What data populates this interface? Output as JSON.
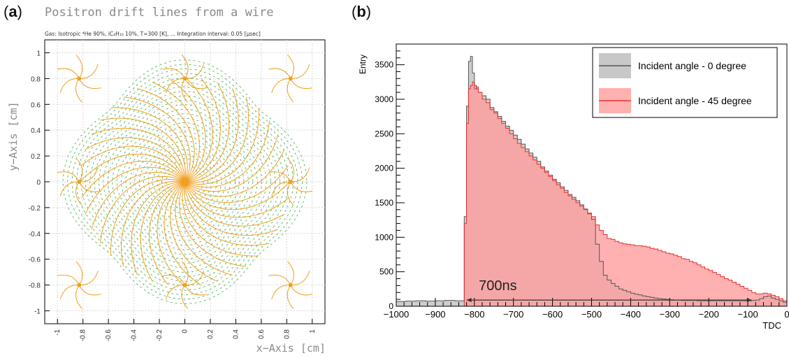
{
  "panels": {
    "a": {
      "label_open": "(",
      "label_letter": "a",
      "label_close": ")"
    },
    "b": {
      "label_open": "(",
      "label_letter": "b",
      "label_close": ")"
    }
  },
  "chart_data": [
    {
      "type": "scatter",
      "title": "Positron drift lines from a wire",
      "subtitle": "Gas: Isotropic ⁴He 90%, iC₄H₁₀ 10%, T=300 [K], ... Integration interval: 0.05 [μsec]",
      "xlabel": "x−Axis [cm]",
      "ylabel": "y−Axis [cm]",
      "xlim": [
        -1.1,
        1.1
      ],
      "ylim": [
        -1.1,
        1.1
      ],
      "x_ticks": [
        -1,
        -0.8,
        -0.6,
        -0.4,
        -0.2,
        0,
        0.2,
        0.4,
        0.6,
        0.8,
        1
      ],
      "y_ticks": [
        -1,
        -0.8,
        -0.6,
        -0.4,
        -0.2,
        0,
        0.2,
        0.4,
        0.6,
        0.8,
        1
      ],
      "grid": true,
      "wires": [
        {
          "x": 0,
          "y": 0
        },
        {
          "x": -0.83,
          "y": 0.8
        },
        {
          "x": 0,
          "y": 0.8
        },
        {
          "x": 0.83,
          "y": 0.8
        },
        {
          "x": -0.83,
          "y": 0
        },
        {
          "x": 0.83,
          "y": 0
        },
        {
          "x": -0.83,
          "y": -0.8
        },
        {
          "x": 0,
          "y": -0.8
        },
        {
          "x": 0.83,
          "y": -0.8
        }
      ],
      "drift_line_count": 40,
      "colors": {
        "drift_lines": "#f0a020",
        "field_lines": "#3cb043",
        "grid": "#d8d8d8"
      }
    },
    {
      "type": "area",
      "xlabel": "TDC",
      "ylabel": "Entry",
      "xlim": [
        -1000,
        0
      ],
      "ylim": [
        0,
        3800
      ],
      "x_ticks": [
        -1000,
        -900,
        -800,
        -700,
        -600,
        -500,
        -400,
        -300,
        -200,
        -100,
        0
      ],
      "y_ticks": [
        0,
        500,
        1000,
        1500,
        2000,
        2500,
        3000,
        3500
      ],
      "legend_position": "top-right",
      "annotation": {
        "text": "700ns",
        "from_x": -820,
        "to_x": -90,
        "y": 90
      },
      "x": [
        -1000,
        -975,
        -950,
        -925,
        -900,
        -875,
        -850,
        -835,
        -826,
        -820,
        -815,
        -810,
        -805,
        -800,
        -795,
        -790,
        -780,
        -770,
        -760,
        -750,
        -740,
        -730,
        -720,
        -710,
        -700,
        -690,
        -680,
        -670,
        -660,
        -650,
        -640,
        -630,
        -620,
        -610,
        -600,
        -590,
        -580,
        -570,
        -560,
        -550,
        -540,
        -530,
        -520,
        -510,
        -500,
        -490,
        -480,
        -470,
        -460,
        -450,
        -440,
        -430,
        -420,
        -410,
        -400,
        -390,
        -380,
        -370,
        -360,
        -350,
        -340,
        -330,
        -320,
        -310,
        -300,
        -290,
        -280,
        -270,
        -260,
        -250,
        -240,
        -230,
        -220,
        -210,
        -200,
        -190,
        -180,
        -170,
        -160,
        -150,
        -140,
        -130,
        -120,
        -110,
        -100,
        -90,
        -80,
        -70,
        -60,
        -50,
        -40,
        -30,
        -20,
        -10,
        0
      ],
      "series": [
        {
          "name": "Incident angle - 0 degree",
          "color": "#808080",
          "values": [
            70,
            75,
            80,
            75,
            80,
            85,
            80,
            80,
            1300,
            2900,
            3550,
            3620,
            3380,
            3200,
            3150,
            3100,
            3050,
            3000,
            2880,
            2820,
            2750,
            2680,
            2610,
            2550,
            2480,
            2420,
            2350,
            2280,
            2220,
            2160,
            2100,
            2020,
            1960,
            1900,
            1840,
            1790,
            1730,
            1680,
            1620,
            1580,
            1530,
            1470,
            1410,
            1340,
            1260,
            900,
            650,
            450,
            380,
            330,
            290,
            250,
            230,
            210,
            190,
            175,
            165,
            150,
            140,
            130,
            120,
            110,
            105,
            100,
            95,
            90,
            90,
            85,
            85,
            85,
            85,
            80,
            80,
            80,
            80,
            80,
            80,
            80,
            80,
            80,
            80,
            80,
            80,
            80,
            80,
            85,
            90,
            110,
            140,
            150,
            120,
            100,
            80,
            60,
            30
          ]
        },
        {
          "name": "Incident angle - 45 degree",
          "color": "#ff6b6b",
          "values": [
            0,
            0,
            0,
            0,
            0,
            0,
            0,
            0,
            1200,
            2650,
            3150,
            3200,
            3250,
            3150,
            3180,
            3100,
            3000,
            2950,
            2850,
            2800,
            2720,
            2650,
            2580,
            2500,
            2430,
            2360,
            2300,
            2240,
            2180,
            2120,
            2060,
            2000,
            1940,
            1880,
            1820,
            1760,
            1710,
            1650,
            1600,
            1550,
            1500,
            1450,
            1400,
            1350,
            1300,
            1180,
            1100,
            1040,
            980,
            970,
            940,
            920,
            905,
            900,
            890,
            880,
            880,
            870,
            860,
            840,
            830,
            810,
            790,
            770,
            760,
            740,
            720,
            690,
            680,
            650,
            630,
            600,
            570,
            540,
            520,
            490,
            460,
            430,
            400,
            380,
            350,
            320,
            290,
            260,
            230,
            200,
            180,
            180,
            190,
            180,
            160,
            140,
            110,
            80,
            40
          ]
        }
      ],
      "colors": {
        "axis": "#000000",
        "arrow": "#333333"
      }
    }
  ]
}
